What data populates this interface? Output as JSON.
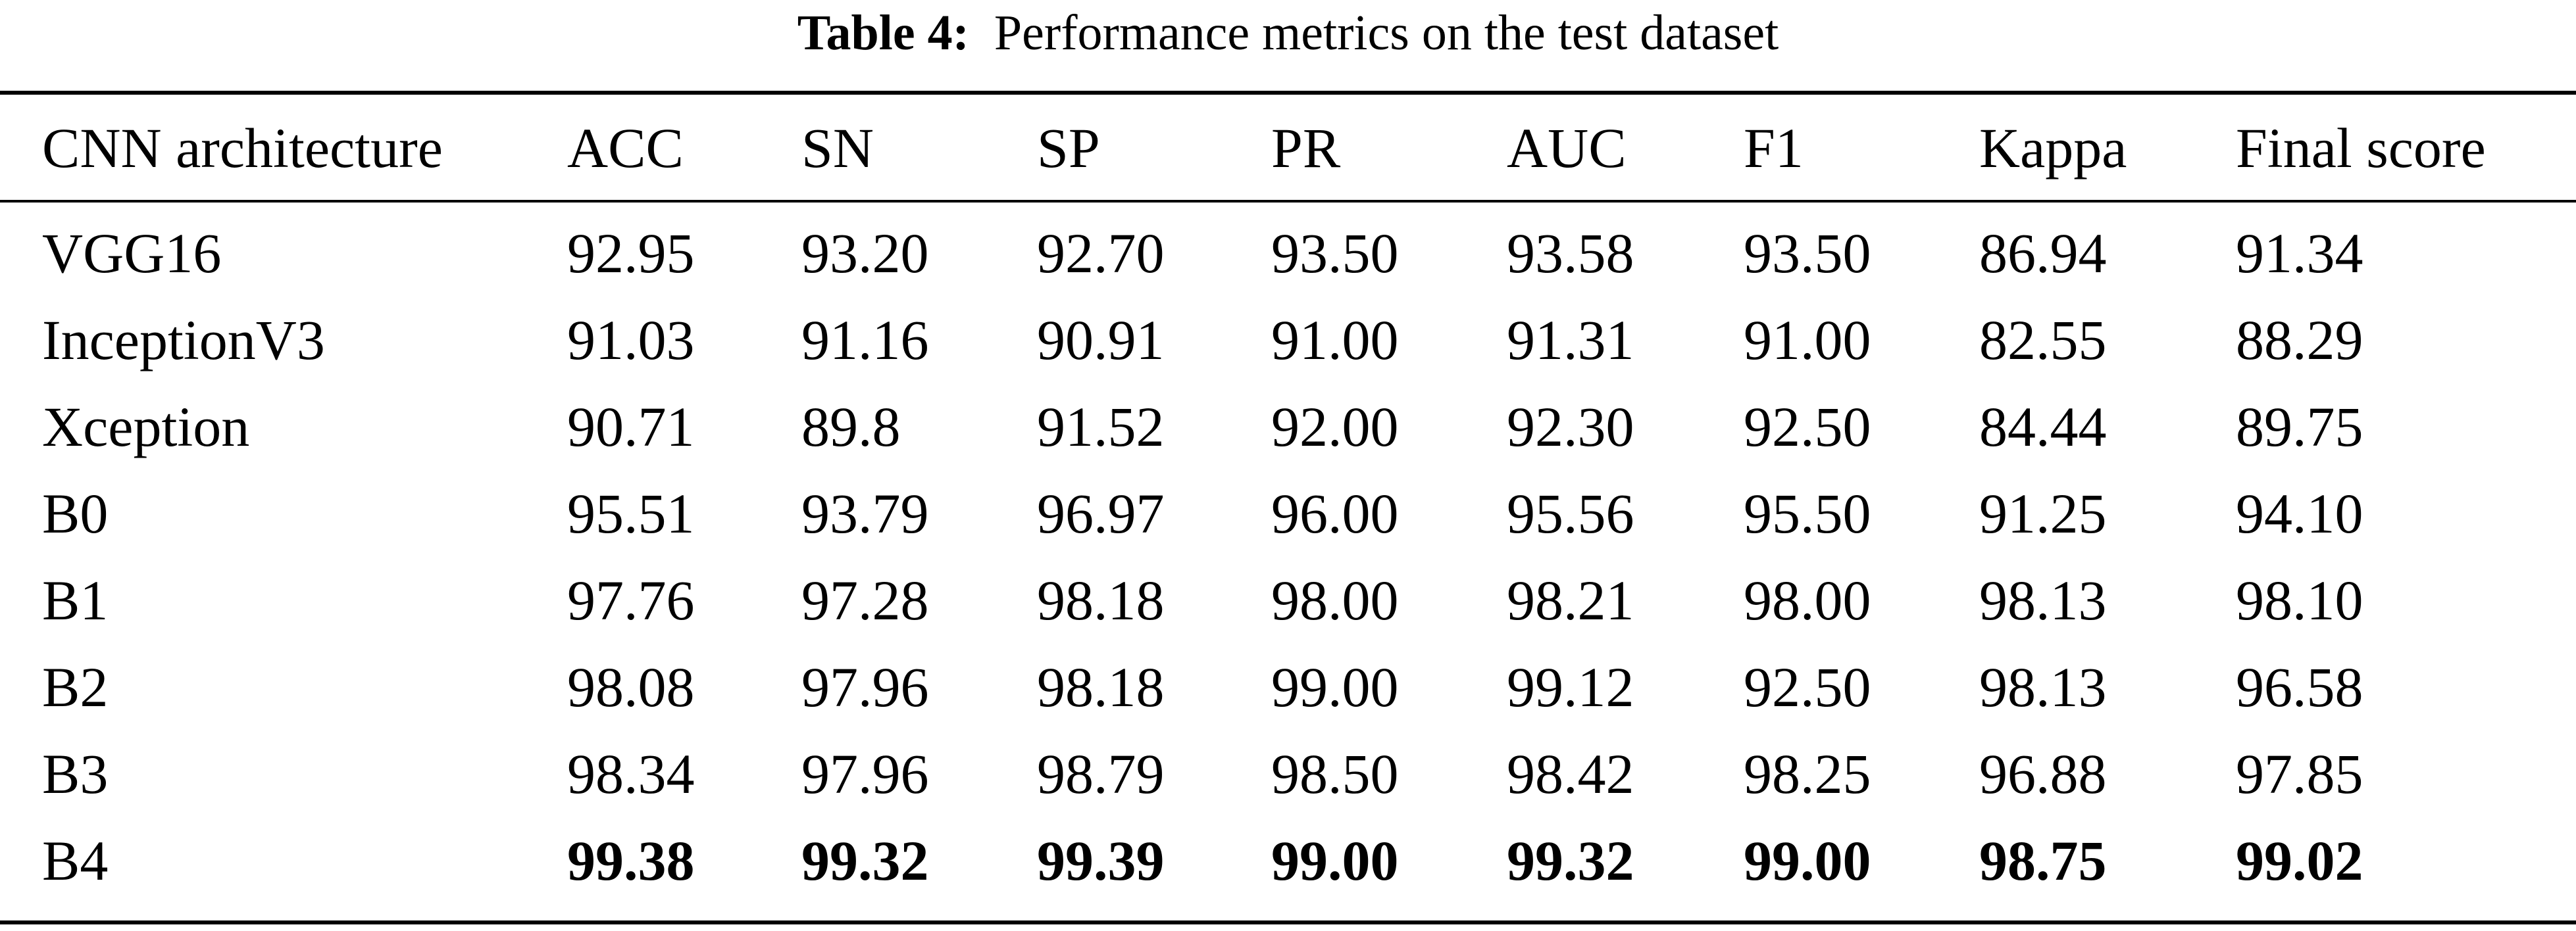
{
  "caption": {
    "label": "Table 4:",
    "text": "Performance metrics on the test dataset"
  },
  "table": {
    "headers": [
      "CNN architecture",
      "ACC",
      "SN",
      "SP",
      "PR",
      "AUC",
      "F1",
      "Kappa",
      "Final score"
    ],
    "rows": [
      {
        "cells": [
          "VGG16",
          "92.95",
          "93.20",
          "92.70",
          "93.50",
          "93.58",
          "93.50",
          "86.94",
          "91.34"
        ],
        "bold": false
      },
      {
        "cells": [
          "InceptionV3",
          "91.03",
          "91.16",
          "90.91",
          "91.00",
          "91.31",
          "91.00",
          "82.55",
          "88.29"
        ],
        "bold": false
      },
      {
        "cells": [
          "Xception",
          "90.71",
          "89.8",
          "91.52",
          "92.00",
          "92.30",
          "92.50",
          "84.44",
          "89.75"
        ],
        "bold": false
      },
      {
        "cells": [
          "B0",
          "95.51",
          "93.79",
          "96.97",
          "96.00",
          "95.56",
          "95.50",
          "91.25",
          "94.10"
        ],
        "bold": false
      },
      {
        "cells": [
          "B1",
          "97.76",
          "97.28",
          "98.18",
          "98.00",
          "98.21",
          "98.00",
          "98.13",
          "98.10"
        ],
        "bold": false
      },
      {
        "cells": [
          "B2",
          "98.08",
          "97.96",
          "98.18",
          "99.00",
          "99.12",
          "92.50",
          "98.13",
          "96.58"
        ],
        "bold": false
      },
      {
        "cells": [
          "B3",
          "98.34",
          "97.96",
          "98.79",
          "98.50",
          "98.42",
          "98.25",
          "96.88",
          "97.85"
        ],
        "bold": false
      },
      {
        "cells": [
          "B4",
          "99.38",
          "99.32",
          "99.39",
          "99.00",
          "99.32",
          "99.00",
          "98.75",
          "99.02"
        ],
        "bold": true
      }
    ]
  }
}
